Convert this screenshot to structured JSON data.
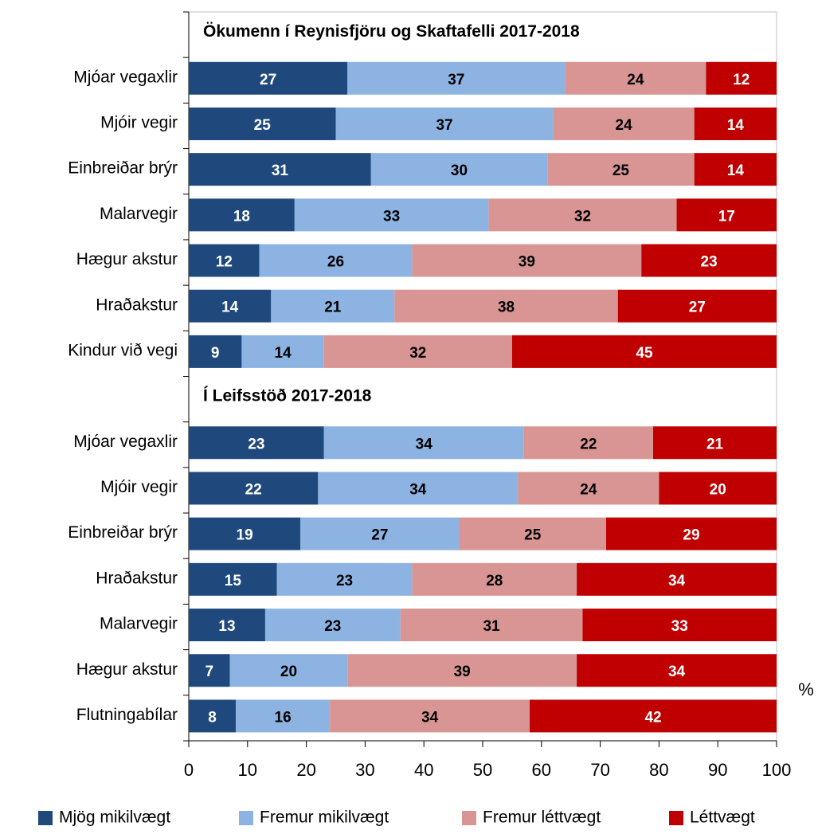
{
  "chart_data": {
    "type": "stacked_barh",
    "annotations": [
      "Ökumenn í Reynisfjöru og Skaftafelli 2017-2018",
      "Í Leifsstöð 2017-2018"
    ],
    "categories": [
      null,
      "Mjóar vegaxlir",
      "Mjóir vegir",
      "Einbreiðar brýr",
      "Malarvegir",
      "Hægur akstur",
      "Hraðakstur",
      "Kindur við vegi",
      null,
      "Mjóar vegaxlir",
      "Mjóir vegir",
      "Einbreiðar brýr",
      "Hraðakstur",
      "Malarvegir",
      "Hægur akstur",
      "Flutningabílar"
    ],
    "series": [
      {
        "name": "Mjög mikilvægt",
        "color": "#1f497d",
        "label_color": "#ffffff",
        "values": [
          null,
          27,
          25,
          31,
          18,
          12,
          14,
          9,
          null,
          23,
          22,
          19,
          15,
          13,
          7,
          8
        ]
      },
      {
        "name": "Fremur mikilvægt",
        "color": "#8db3e2",
        "label_color": "#000000",
        "values": [
          null,
          37,
          37,
          30,
          33,
          26,
          21,
          14,
          null,
          34,
          34,
          27,
          23,
          23,
          20,
          16
        ]
      },
      {
        "name": "Fremur léttvægt",
        "color": "#d99594",
        "label_color": "#000000",
        "values": [
          null,
          24,
          24,
          25,
          32,
          39,
          38,
          32,
          null,
          22,
          24,
          25,
          28,
          31,
          39,
          34
        ]
      },
      {
        "name": "Léttvægt",
        "color": "#c00000",
        "label_color": "#ffffff",
        "values": [
          null,
          12,
          14,
          14,
          17,
          23,
          27,
          45,
          null,
          21,
          20,
          29,
          34,
          33,
          34,
          42
        ]
      }
    ],
    "x_label": "%",
    "xlim": [
      0,
      100
    ],
    "xticks": [
      0,
      10,
      20,
      30,
      40,
      50,
      60,
      70,
      80,
      90,
      100
    ],
    "legend": "bottom"
  }
}
